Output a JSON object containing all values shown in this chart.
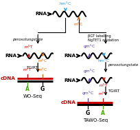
{
  "bg_color": "#ffffff",
  "wo_seq_label": "WO-Seq",
  "tawo_seq_label": "TAWO-Seq",
  "peroxotungstate": "peroxotungstate",
  "tgirt": "TGIRT",
  "bgt_label": "βGT labelling\nNgTET1 oxidation",
  "rna_label": "RNA",
  "cdna_label": "cDNA",
  "hmc_color": "#3399dd",
  "mc_color": "#dd6600",
  "red_color": "#cc0000",
  "green_color": "#44aa00",
  "purple_color": "#5533bb",
  "black": "#000000"
}
